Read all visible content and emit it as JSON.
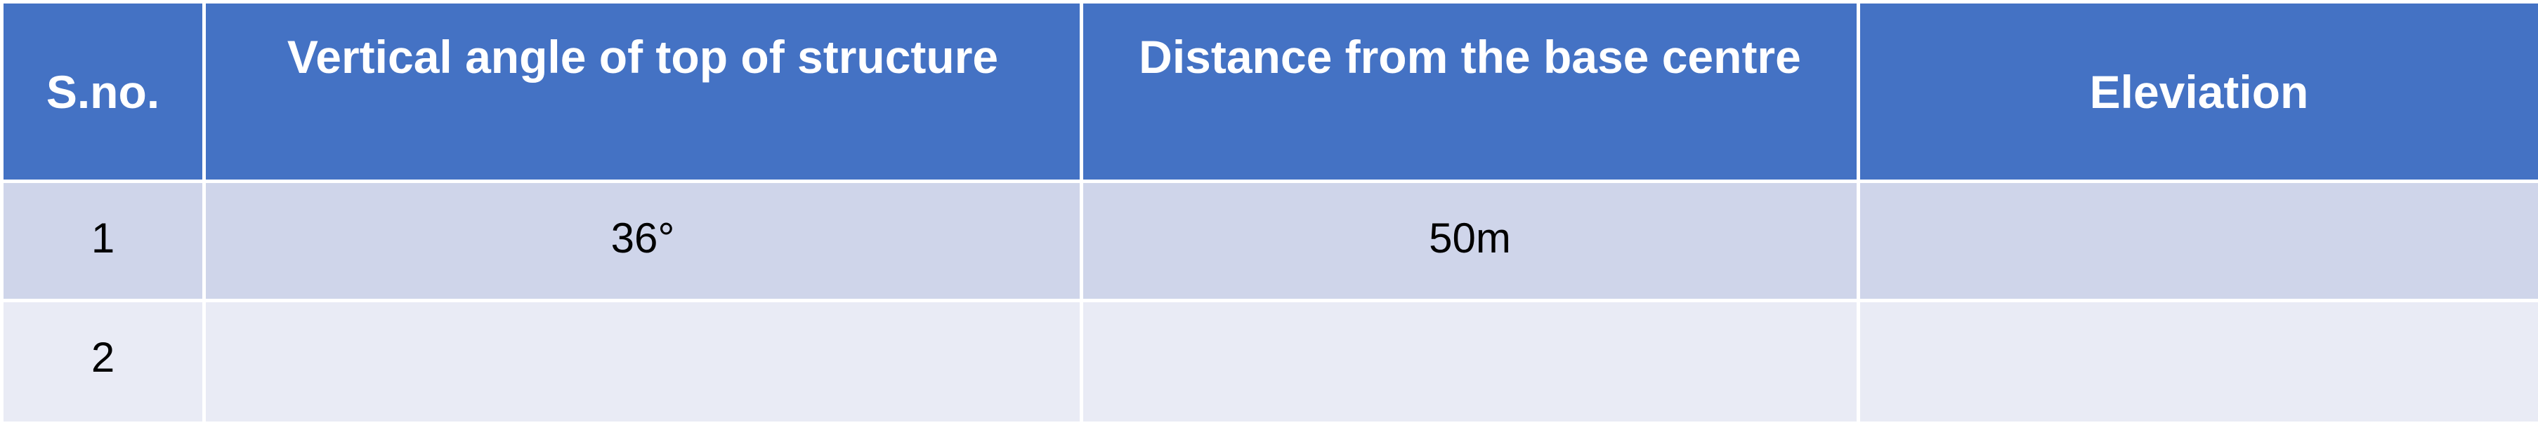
{
  "table": {
    "headers": [
      "S.no.",
      "Vertical angle of top of structure",
      "Distance from the base centre",
      "Eleviation"
    ],
    "rows": [
      [
        "1",
        "36°",
        "50m",
        ""
      ],
      [
        "2",
        "",
        "",
        ""
      ]
    ]
  },
  "colors": {
    "header_bg": "#4472c4",
    "header_text": "#ffffff",
    "row_odd_bg": "#cfd5ea",
    "row_even_bg": "#e9ebf5",
    "border": "#ffffff"
  }
}
